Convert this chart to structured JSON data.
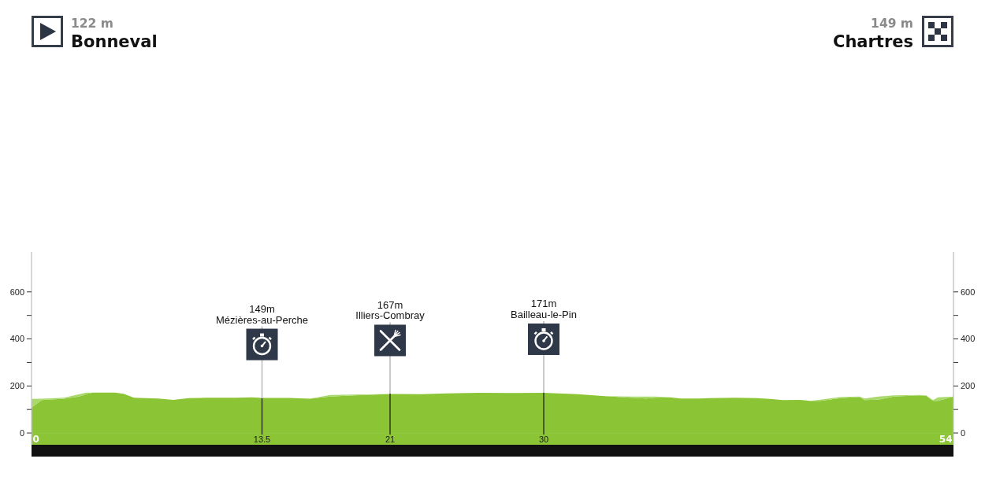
{
  "chart_data": {
    "type": "area",
    "stacked": true,
    "x": [
      0,
      0.6,
      1.9,
      2.8,
      3.2,
      3.6,
      4.9,
      5.4,
      6.0,
      7.4,
      8.3,
      9.2,
      10.2,
      11.4,
      12.0,
      12.9,
      13.5,
      15.1,
      16.3,
      17.5,
      18.9,
      21.0,
      22.8,
      24.3,
      26.2,
      28.2,
      30.0,
      32.0,
      33.6,
      35.1,
      36.0,
      36.5,
      37.4,
      38.0,
      39.1,
      39.7,
      41.2,
      42.5,
      43.4,
      44.0,
      45.0,
      45.6,
      46.2,
      47.4,
      48.5,
      48.8,
      49.6,
      50.5,
      52.0,
      52.4,
      52.8,
      53.1,
      54
    ],
    "series": [
      {
        "color": "#8bc435",
        "values": [
          108,
          140,
          146,
          155,
          165,
          172,
          172,
          167,
          150,
          147,
          141,
          148,
          150,
          150,
          150,
          152,
          149,
          149,
          146,
          155,
          160,
          166,
          165,
          168,
          171,
          170,
          171,
          165,
          157,
          150,
          147,
          150,
          152,
          147,
          147,
          148,
          150,
          148,
          144,
          140,
          141,
          137,
          137,
          148,
          153,
          140,
          142,
          155,
          160,
          158,
          137,
          137,
          155
        ]
      },
      {
        "color": "#a9d96b",
        "values": [
          37,
          6,
          4,
          10,
          7,
          0,
          null,
          null,
          null,
          null,
          null,
          null,
          null,
          null,
          null,
          null,
          null,
          null,
          0,
          7,
          3,
          0,
          null,
          null,
          null,
          null,
          null,
          null,
          0,
          5,
          8,
          5,
          0,
          null,
          null,
          null,
          null,
          null,
          null,
          null,
          null,
          0,
          5,
          5,
          2,
          7,
          13,
          5,
          2,
          2,
          3,
          15,
          0
        ]
      }
    ],
    "xlim": [
      0,
      54
    ],
    "xticks": [
      0,
      13.5,
      21,
      30,
      54
    ],
    "ylim": [
      -50,
      770
    ],
    "yticks": [
      0,
      {
        "value": 100,
        "label": null
      },
      200,
      {
        "value": 300,
        "label": null
      },
      400,
      {
        "value": 500,
        "label": null
      },
      600
    ],
    "y2lim": [
      -50,
      770
    ],
    "y2ticks": [
      0,
      {
        "value": 100,
        "label": null
      },
      200,
      {
        "value": 300,
        "label": null
      },
      400,
      {
        "value": 500,
        "label": null
      },
      600
    ],
    "ref_lines": [
      {
        "axis": "x",
        "value": 13.5,
        "label": "149m\nMézières-au-Perche"
      },
      {
        "axis": "x",
        "value": 21,
        "label": "167m\nIlliers-Combray"
      },
      {
        "axis": "x",
        "value": 30,
        "label": "171m\nBailleau-le-Pin"
      }
    ],
    "annotations": [
      "122 m",
      "Bonneval",
      "149 m",
      "Chartres"
    ]
  }
}
